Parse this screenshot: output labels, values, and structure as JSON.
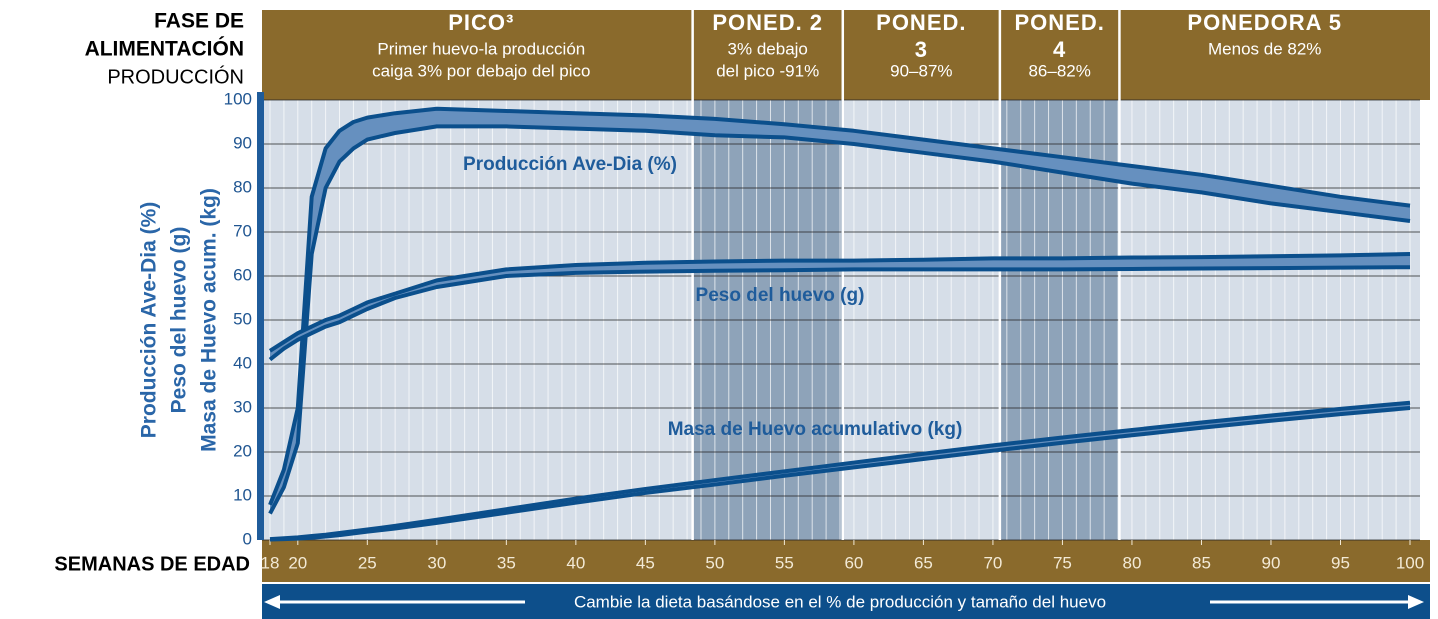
{
  "chart_data": {
    "type": "band-line",
    "phase_label": [
      "FASE DE",
      "ALIMENTACIÓN"
    ],
    "phase_sublabel": "PRODUCCIÓN",
    "y_label": [
      "Producción Ave-Dia (%)",
      "Peso del huevo (g)",
      "Masa de Huevo acum. (kg)"
    ],
    "x_label": "SEMANAS DE EDAD",
    "footer": "Cambie la dieta basándose en el % de producción y tamaño del huevo",
    "phases": [
      {
        "title": [
          "PICO³"
        ],
        "desc": [
          "Primer huevo-la producción",
          "caiga 3% por debajo del pico"
        ],
        "start": 18,
        "end": 48.4,
        "shaded": false
      },
      {
        "title": [
          "PONED. 2"
        ],
        "desc": [
          "3% debajo",
          "del pico -91%"
        ],
        "start": 48.4,
        "end": 59.2,
        "shaded": true
      },
      {
        "title": [
          "PONED.",
          "3"
        ],
        "desc": [
          "90–87%"
        ],
        "start": 59.2,
        "end": 70.5,
        "shaded": false
      },
      {
        "title": [
          "PONED.",
          "4"
        ],
        "desc": [
          "86–82%"
        ],
        "start": 70.5,
        "end": 79.1,
        "shaded": true
      },
      {
        "title": [
          "PONEDORA 5"
        ],
        "desc": [
          "Menos de 82%"
        ],
        "start": 79.1,
        "end": 100,
        "shaded": false
      }
    ],
    "x": [
      18,
      19,
      20,
      21,
      22,
      23,
      24,
      25,
      27,
      30,
      35,
      40,
      45,
      50,
      55,
      60,
      65,
      70,
      75,
      80,
      85,
      90,
      95,
      100
    ],
    "series": [
      {
        "name": "Producción Ave-Dia (%)",
        "color": "#0b4f8c",
        "values": [
          8,
          16,
          30,
          78,
          89,
          93,
          95,
          96,
          97,
          98,
          97.5,
          97,
          96.5,
          95.7,
          94.5,
          93,
          91,
          89,
          87,
          85,
          83,
          80.5,
          78,
          76
        ],
        "values_low": [
          6,
          12,
          22,
          65,
          80,
          86,
          89,
          91,
          92.5,
          94,
          94,
          93.5,
          93,
          92,
          91.5,
          90,
          88,
          86,
          83.5,
          81,
          79,
          76.5,
          74.5,
          72.5
        ]
      },
      {
        "name": "Peso del huevo (g)",
        "color": "#0b4f8c",
        "values": [
          43,
          45,
          47,
          48.5,
          50,
          51,
          52.5,
          54,
          56,
          59,
          61.5,
          62.5,
          63,
          63.3,
          63.5,
          63.5,
          63.7,
          64,
          64,
          64.2,
          64.3,
          64.5,
          64.7,
          65
        ],
        "values_low": [
          41,
          43.5,
          45.5,
          47,
          48.5,
          49.5,
          51,
          52.5,
          55,
          57.5,
          60,
          60.7,
          61,
          61.2,
          61.3,
          61.5,
          61.5,
          61.5,
          61.5,
          61.6,
          61.7,
          61.8,
          61.9,
          62
        ]
      },
      {
        "name": "Masa de Huevo acumulativo (kg)",
        "color": "#0b4f8c",
        "values": [
          0.2,
          0.4,
          0.6,
          0.9,
          1.2,
          1.6,
          2.0,
          2.4,
          3.2,
          4.6,
          7,
          9.4,
          11.6,
          13.6,
          15.6,
          17.6,
          19.6,
          21.5,
          23.3,
          25.0,
          26.7,
          28.3,
          29.8,
          31.2
        ],
        "values_low": [
          0.1,
          0.2,
          0.3,
          0.5,
          0.8,
          1.1,
          1.5,
          1.9,
          2.6,
          3.9,
          6.2,
          8.5,
          10.7,
          12.6,
          14.6,
          16.5,
          18.4,
          20.3,
          22.1,
          23.8,
          25.5,
          27.1,
          28.6,
          30
        ]
      }
    ],
    "xlim": [
      18,
      100
    ],
    "xticks": [
      18,
      20,
      25,
      30,
      35,
      40,
      45,
      50,
      55,
      60,
      65,
      70,
      75,
      80,
      85,
      90,
      95,
      100
    ],
    "ylim": [
      0,
      100
    ],
    "yticks": [
      0,
      10,
      20,
      30,
      40,
      50,
      60,
      70,
      80,
      90,
      100
    ],
    "grid": true
  }
}
